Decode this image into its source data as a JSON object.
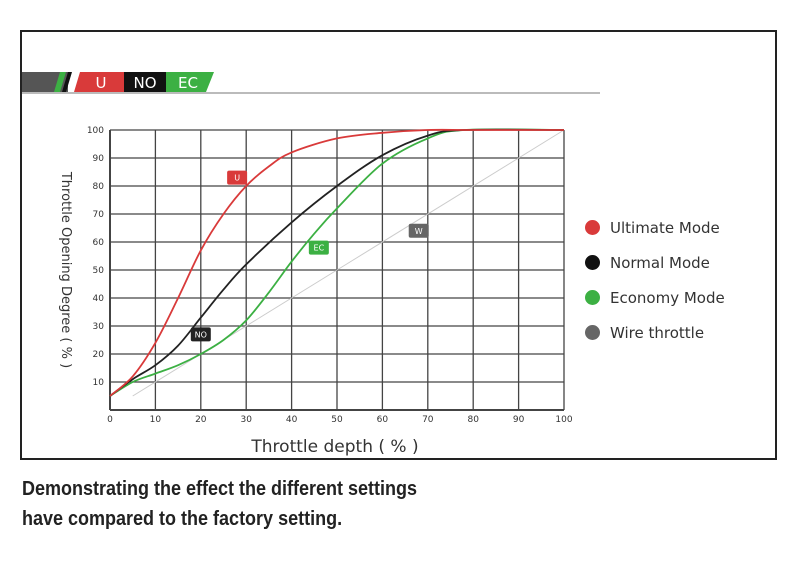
{
  "banner": {
    "u": "U",
    "no": "NO",
    "ec": "EC"
  },
  "caption": [
    "Demonstrating the effect the different settings",
    "have compared to the factory setting."
  ],
  "chart_data": {
    "type": "line",
    "title": "",
    "xlabel": "Throttle depth ( % )",
    "ylabel": "Throttle Opening Degree ( % )",
    "xlim": [
      0,
      100
    ],
    "ylim": [
      0,
      100
    ],
    "xticks": [
      0,
      10,
      20,
      30,
      40,
      50,
      60,
      70,
      80,
      90,
      100
    ],
    "yticks": [
      10,
      20,
      30,
      40,
      50,
      60,
      70,
      80,
      90,
      100
    ],
    "grid": true,
    "legend_position": "right",
    "series": [
      {
        "name": "Ultimate Mode",
        "tag": "U",
        "color": "#d93a3a",
        "points": [
          [
            0,
            5
          ],
          [
            5,
            12
          ],
          [
            10,
            24
          ],
          [
            15,
            40
          ],
          [
            20,
            57
          ],
          [
            25,
            70
          ],
          [
            30,
            80
          ],
          [
            35,
            87
          ],
          [
            40,
            92
          ],
          [
            50,
            97
          ],
          [
            60,
            99
          ],
          [
            70,
            100
          ],
          [
            80,
            100
          ],
          [
            100,
            100
          ]
        ],
        "label_at": [
          28,
          83
        ]
      },
      {
        "name": "Normal Mode",
        "tag": "NO",
        "color": "#222222",
        "points": [
          [
            0,
            5
          ],
          [
            5,
            11
          ],
          [
            10,
            16
          ],
          [
            15,
            23
          ],
          [
            20,
            33
          ],
          [
            25,
            43
          ],
          [
            30,
            52
          ],
          [
            40,
            67
          ],
          [
            50,
            80
          ],
          [
            60,
            91
          ],
          [
            70,
            98
          ],
          [
            78,
            100
          ],
          [
            100,
            100
          ]
        ],
        "label_at": [
          20,
          27
        ]
      },
      {
        "name": "Economy Mode",
        "tag": "EC",
        "color": "#3cb043",
        "points": [
          [
            0,
            5
          ],
          [
            5,
            10
          ],
          [
            10,
            13
          ],
          [
            15,
            16
          ],
          [
            20,
            20
          ],
          [
            25,
            25
          ],
          [
            30,
            32
          ],
          [
            35,
            42
          ],
          [
            40,
            53
          ],
          [
            45,
            63
          ],
          [
            50,
            72
          ],
          [
            60,
            88
          ],
          [
            70,
            97
          ],
          [
            78,
            100
          ],
          [
            100,
            100
          ]
        ],
        "label_at": [
          46,
          58
        ]
      },
      {
        "name": "Wire throttle",
        "tag": "W",
        "color": "#cccccc",
        "tag_color": "#666666",
        "points": [
          [
            5,
            5
          ],
          [
            100,
            100
          ]
        ],
        "label_at": [
          68,
          64
        ]
      }
    ]
  }
}
